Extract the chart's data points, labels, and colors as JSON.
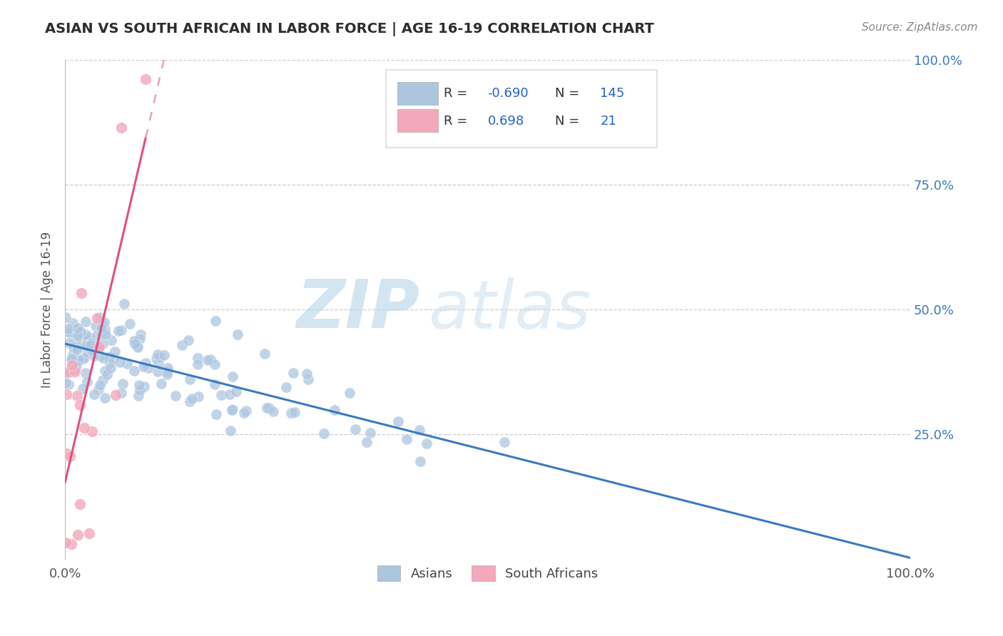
{
  "title": "ASIAN VS SOUTH AFRICAN IN LABOR FORCE | AGE 16-19 CORRELATION CHART",
  "source_text": "Source: ZipAtlas.com",
  "ylabel": "In Labor Force | Age 16-19",
  "xlim": [
    0.0,
    1.0
  ],
  "ylim": [
    0.0,
    1.0
  ],
  "asian_R": -0.69,
  "asian_N": 145,
  "sa_R": 0.698,
  "sa_N": 21,
  "asian_color": "#adc6e0",
  "sa_color": "#f4a8bc",
  "asian_line_color": "#3a7bbf",
  "sa_line_color": "#e05080",
  "sa_dashed_color": "#e8a0b8",
  "legend_asian_label": "Asians",
  "legend_sa_label": "South Africans",
  "watermark_zip": "ZIP",
  "watermark_atlas": "atlas",
  "background_color": "#ffffff",
  "grid_color": "#cccccc",
  "title_color": "#2d2d2d",
  "asian_scatter_seed": 42,
  "sa_scatter_seed": 7
}
